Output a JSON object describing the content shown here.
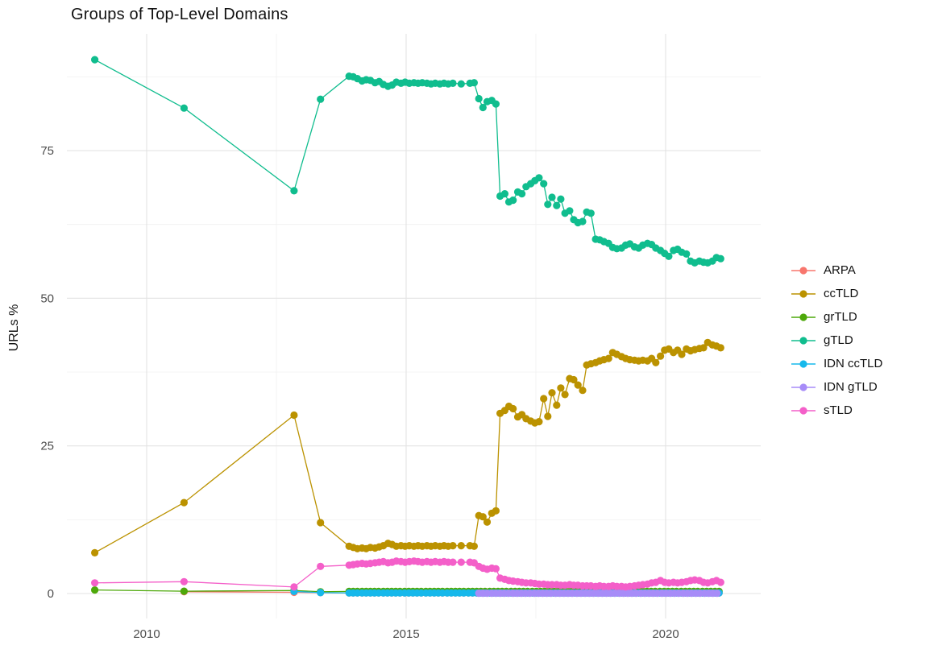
{
  "chart_data": {
    "type": "line",
    "title": "Groups of Top-Level Domains",
    "xlabel": "",
    "ylabel": "URLs %",
    "x_ticks": [
      2010,
      2015,
      2020
    ],
    "x_minor_ticks": [
      2012.5,
      2017.5
    ],
    "y_ticks": [
      0,
      25,
      50,
      75
    ],
    "y_minor_ticks": [
      12.5,
      37.5,
      62.5,
      87.5
    ],
    "xlim": [
      2008.45,
      2021.85
    ],
    "ylim": [
      -4.5,
      95.5
    ],
    "grid": true,
    "legend_position": "right",
    "axis_text_color": "#4d4d4d",
    "major_grid_color": "#e3e3e3",
    "minor_grid_color": "#f0f0f0",
    "series": [
      {
        "name": "ARPA",
        "color": "#F8766D",
        "points": [
          [
            2010.72,
            0.3
          ],
          [
            2012.84,
            0.2
          ],
          [
            2013.35,
            0.15
          ]
        ],
        "flat": {
          "from": 2013.9,
          "to": 2021.06,
          "step": 0.082,
          "value": 0.1
        }
      },
      {
        "name": "ccTLD",
        "color": "#BB9200",
        "points": [
          [
            2009,
            6.9
          ],
          [
            2010.72,
            15.4
          ],
          [
            2012.84,
            30.2
          ],
          [
            2013.35,
            12
          ],
          [
            2013.9,
            8
          ],
          [
            2013.98,
            7.8
          ],
          [
            2014.06,
            7.6
          ],
          [
            2014.15,
            7.7
          ],
          [
            2014.23,
            7.6
          ],
          [
            2014.31,
            7.8
          ],
          [
            2014.4,
            7.7
          ],
          [
            2014.48,
            7.9
          ],
          [
            2014.56,
            8.1
          ],
          [
            2014.65,
            8.5
          ],
          [
            2014.73,
            8.3
          ],
          [
            2014.81,
            8.0
          ],
          [
            2014.9,
            8.1
          ],
          [
            2014.98,
            8.0
          ],
          [
            2015.06,
            8.1
          ],
          [
            2015.15,
            8.0
          ],
          [
            2015.23,
            8.1
          ],
          [
            2015.31,
            8.0
          ],
          [
            2015.4,
            8.1
          ],
          [
            2015.48,
            8.0
          ],
          [
            2015.56,
            8.1
          ],
          [
            2015.65,
            8.0
          ],
          [
            2015.73,
            8.1
          ],
          [
            2015.81,
            8.0
          ],
          [
            2015.9,
            8.1
          ],
          [
            2016.06,
            8.1
          ],
          [
            2016.23,
            8.1
          ],
          [
            2016.31,
            8.0
          ],
          [
            2016.4,
            13.2
          ],
          [
            2016.48,
            13.0
          ],
          [
            2016.56,
            12.1
          ],
          [
            2016.65,
            13.6
          ],
          [
            2016.73,
            14.0
          ],
          [
            2016.81,
            30.5
          ],
          [
            2016.9,
            31.0
          ],
          [
            2016.98,
            31.7
          ],
          [
            2017.06,
            31.3
          ],
          [
            2017.15,
            29.9
          ],
          [
            2017.23,
            30.3
          ],
          [
            2017.31,
            29.6
          ],
          [
            2017.4,
            29.2
          ],
          [
            2017.48,
            28.9
          ],
          [
            2017.56,
            29.1
          ],
          [
            2017.65,
            33.0
          ],
          [
            2017.73,
            30.0
          ],
          [
            2017.81,
            34.0
          ],
          [
            2017.9,
            31.9
          ],
          [
            2017.98,
            34.8
          ],
          [
            2018.06,
            33.7
          ],
          [
            2018.15,
            36.4
          ],
          [
            2018.23,
            36.2
          ],
          [
            2018.31,
            35.3
          ],
          [
            2018.4,
            34.4
          ],
          [
            2018.48,
            38.7
          ],
          [
            2018.56,
            38.9
          ],
          [
            2018.65,
            39.1
          ],
          [
            2018.73,
            39.4
          ],
          [
            2018.81,
            39.6
          ],
          [
            2018.9,
            39.8
          ],
          [
            2018.98,
            40.8
          ],
          [
            2019.06,
            40.5
          ],
          [
            2019.15,
            40.1
          ],
          [
            2019.23,
            39.8
          ],
          [
            2019.31,
            39.6
          ],
          [
            2019.4,
            39.5
          ],
          [
            2019.48,
            39.4
          ],
          [
            2019.56,
            39.5
          ],
          [
            2019.65,
            39.4
          ],
          [
            2019.73,
            39.8
          ],
          [
            2019.81,
            39.1
          ],
          [
            2019.9,
            40.2
          ],
          [
            2019.98,
            41.2
          ],
          [
            2020.06,
            41.4
          ],
          [
            2020.15,
            40.8
          ],
          [
            2020.23,
            41.2
          ],
          [
            2020.31,
            40.5
          ],
          [
            2020.4,
            41.4
          ],
          [
            2020.48,
            41.1
          ],
          [
            2020.56,
            41.3
          ],
          [
            2020.65,
            41.5
          ],
          [
            2020.73,
            41.6
          ],
          [
            2020.81,
            42.5
          ],
          [
            2020.9,
            42.1
          ],
          [
            2020.98,
            41.9
          ],
          [
            2021.06,
            41.6
          ]
        ]
      },
      {
        "name": "grTLD",
        "color": "#4DA80A",
        "points": [
          [
            2009,
            0.6
          ],
          [
            2010.72,
            0.4
          ],
          [
            2012.84,
            0.5
          ],
          [
            2013.35,
            0.3
          ]
        ],
        "flat": {
          "from": 2013.9,
          "to": 2021.06,
          "step": 0.082,
          "value": 0.35
        }
      },
      {
        "name": "gTLD",
        "color": "#10BD8E",
        "points": [
          [
            2009,
            90.4
          ],
          [
            2010.72,
            82.2
          ],
          [
            2012.84,
            68.2
          ],
          [
            2013.35,
            83.7
          ],
          [
            2013.9,
            87.6
          ],
          [
            2013.98,
            87.5
          ],
          [
            2014.06,
            87.2
          ],
          [
            2014.15,
            86.8
          ],
          [
            2014.23,
            87.0
          ],
          [
            2014.31,
            86.9
          ],
          [
            2014.4,
            86.5
          ],
          [
            2014.48,
            86.7
          ],
          [
            2014.56,
            86.2
          ],
          [
            2014.65,
            85.9
          ],
          [
            2014.73,
            86.1
          ],
          [
            2014.81,
            86.6
          ],
          [
            2014.9,
            86.4
          ],
          [
            2014.98,
            86.6
          ],
          [
            2015.06,
            86.4
          ],
          [
            2015.15,
            86.5
          ],
          [
            2015.23,
            86.4
          ],
          [
            2015.31,
            86.5
          ],
          [
            2015.4,
            86.4
          ],
          [
            2015.48,
            86.3
          ],
          [
            2015.56,
            86.4
          ],
          [
            2015.65,
            86.3
          ],
          [
            2015.73,
            86.4
          ],
          [
            2015.81,
            86.3
          ],
          [
            2015.9,
            86.4
          ],
          [
            2016.06,
            86.3
          ],
          [
            2016.23,
            86.4
          ],
          [
            2016.31,
            86.5
          ],
          [
            2016.4,
            83.8
          ],
          [
            2016.48,
            82.3
          ],
          [
            2016.56,
            83.3
          ],
          [
            2016.65,
            83.5
          ],
          [
            2016.73,
            82.9
          ],
          [
            2016.81,
            67.3
          ],
          [
            2016.9,
            67.7
          ],
          [
            2016.98,
            66.3
          ],
          [
            2017.06,
            66.6
          ],
          [
            2017.15,
            68.0
          ],
          [
            2017.23,
            67.7
          ],
          [
            2017.31,
            68.9
          ],
          [
            2017.4,
            69.4
          ],
          [
            2017.48,
            69.9
          ],
          [
            2017.56,
            70.4
          ],
          [
            2017.65,
            69.4
          ],
          [
            2017.73,
            65.9
          ],
          [
            2017.81,
            67.1
          ],
          [
            2017.9,
            65.7
          ],
          [
            2017.98,
            66.8
          ],
          [
            2018.06,
            64.4
          ],
          [
            2018.15,
            64.8
          ],
          [
            2018.23,
            63.3
          ],
          [
            2018.31,
            62.8
          ],
          [
            2018.4,
            63.0
          ],
          [
            2018.48,
            64.6
          ],
          [
            2018.56,
            64.4
          ],
          [
            2018.65,
            60.0
          ],
          [
            2018.73,
            59.9
          ],
          [
            2018.81,
            59.6
          ],
          [
            2018.9,
            59.3
          ],
          [
            2018.98,
            58.6
          ],
          [
            2019.06,
            58.4
          ],
          [
            2019.15,
            58.5
          ],
          [
            2019.23,
            59.0
          ],
          [
            2019.31,
            59.2
          ],
          [
            2019.4,
            58.7
          ],
          [
            2019.48,
            58.5
          ],
          [
            2019.56,
            59.0
          ],
          [
            2019.65,
            59.3
          ],
          [
            2019.73,
            59.1
          ],
          [
            2019.81,
            58.5
          ],
          [
            2019.9,
            58.1
          ],
          [
            2019.98,
            57.6
          ],
          [
            2020.06,
            57.1
          ],
          [
            2020.15,
            58.1
          ],
          [
            2020.23,
            58.3
          ],
          [
            2020.31,
            57.8
          ],
          [
            2020.4,
            57.5
          ],
          [
            2020.48,
            56.3
          ],
          [
            2020.56,
            56.0
          ],
          [
            2020.65,
            56.3
          ],
          [
            2020.73,
            56.1
          ],
          [
            2020.81,
            56.0
          ],
          [
            2020.9,
            56.3
          ],
          [
            2020.98,
            56.9
          ],
          [
            2021.06,
            56.7
          ]
        ]
      },
      {
        "name": "IDN ccTLD",
        "color": "#16B8EB",
        "points": [
          [
            2012.84,
            0.35
          ],
          [
            2013.35,
            0.15
          ]
        ],
        "flat": {
          "from": 2013.9,
          "to": 2021.06,
          "step": 0.082,
          "value": 0.1
        }
      },
      {
        "name": "IDN gTLD",
        "color": "#A78CF8",
        "points": [],
        "flat": {
          "from": 2016.4,
          "to": 2021.06,
          "step": 0.082,
          "value": 0.05
        }
      },
      {
        "name": "sTLD",
        "color": "#F45FC9",
        "points": [
          [
            2009,
            1.8
          ],
          [
            2010.72,
            2.0
          ],
          [
            2012.84,
            1.1
          ],
          [
            2013.35,
            4.6
          ],
          [
            2013.9,
            4.8
          ],
          [
            2013.98,
            4.9
          ],
          [
            2014.06,
            5.0
          ],
          [
            2014.15,
            5.1
          ],
          [
            2014.23,
            5.0
          ],
          [
            2014.31,
            5.1
          ],
          [
            2014.4,
            5.2
          ],
          [
            2014.48,
            5.3
          ],
          [
            2014.56,
            5.4
          ],
          [
            2014.65,
            5.2
          ],
          [
            2014.73,
            5.3
          ],
          [
            2014.81,
            5.5
          ],
          [
            2014.9,
            5.4
          ],
          [
            2014.98,
            5.3
          ],
          [
            2015.06,
            5.4
          ],
          [
            2015.15,
            5.5
          ],
          [
            2015.23,
            5.4
          ],
          [
            2015.31,
            5.3
          ],
          [
            2015.4,
            5.4
          ],
          [
            2015.48,
            5.3
          ],
          [
            2015.56,
            5.4
          ],
          [
            2015.65,
            5.3
          ],
          [
            2015.73,
            5.4
          ],
          [
            2015.81,
            5.3
          ],
          [
            2015.9,
            5.3
          ],
          [
            2016.06,
            5.3
          ],
          [
            2016.23,
            5.3
          ],
          [
            2016.31,
            5.2
          ],
          [
            2016.4,
            4.6
          ],
          [
            2016.48,
            4.3
          ],
          [
            2016.56,
            4.1
          ],
          [
            2016.65,
            4.3
          ],
          [
            2016.73,
            4.2
          ],
          [
            2016.81,
            2.6
          ],
          [
            2016.9,
            2.4
          ],
          [
            2016.98,
            2.2
          ],
          [
            2017.06,
            2.1
          ],
          [
            2017.15,
            2.0
          ],
          [
            2017.23,
            1.9
          ],
          [
            2017.31,
            1.8
          ],
          [
            2017.4,
            1.8
          ],
          [
            2017.48,
            1.7
          ],
          [
            2017.56,
            1.6
          ],
          [
            2017.65,
            1.6
          ],
          [
            2017.73,
            1.5
          ],
          [
            2017.81,
            1.5
          ],
          [
            2017.9,
            1.5
          ],
          [
            2017.98,
            1.4
          ],
          [
            2018.06,
            1.4
          ],
          [
            2018.15,
            1.5
          ],
          [
            2018.23,
            1.4
          ],
          [
            2018.31,
            1.4
          ],
          [
            2018.4,
            1.3
          ],
          [
            2018.48,
            1.3
          ],
          [
            2018.56,
            1.3
          ],
          [
            2018.65,
            1.2
          ],
          [
            2018.73,
            1.3
          ],
          [
            2018.81,
            1.2
          ],
          [
            2018.9,
            1.2
          ],
          [
            2018.98,
            1.3
          ],
          [
            2019.06,
            1.2
          ],
          [
            2019.15,
            1.2
          ],
          [
            2019.23,
            1.1
          ],
          [
            2019.31,
            1.2
          ],
          [
            2019.4,
            1.3
          ],
          [
            2019.48,
            1.4
          ],
          [
            2019.56,
            1.5
          ],
          [
            2019.65,
            1.6
          ],
          [
            2019.73,
            1.8
          ],
          [
            2019.81,
            1.9
          ],
          [
            2019.9,
            2.2
          ],
          [
            2019.98,
            1.9
          ],
          [
            2020.06,
            1.8
          ],
          [
            2020.15,
            1.9
          ],
          [
            2020.23,
            1.8
          ],
          [
            2020.31,
            1.9
          ],
          [
            2020.4,
            2.0
          ],
          [
            2020.48,
            2.2
          ],
          [
            2020.56,
            2.3
          ],
          [
            2020.65,
            2.2
          ],
          [
            2020.73,
            1.9
          ],
          [
            2020.81,
            1.8
          ],
          [
            2020.9,
            2.0
          ],
          [
            2020.98,
            2.2
          ],
          [
            2021.06,
            1.9
          ]
        ]
      }
    ]
  }
}
